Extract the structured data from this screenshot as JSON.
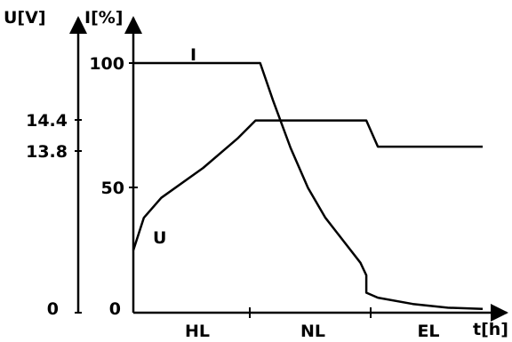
{
  "chart_data": {
    "type": "line",
    "left_axis_label": "U[V]",
    "right_axis_label": "I[%]",
    "x_axis_label": "t[h]",
    "left_ticks": [
      "14.4",
      "13.8",
      "0"
    ],
    "right_ticks": [
      "100",
      "50",
      "0"
    ],
    "phases": [
      "HL",
      "NL",
      "EL"
    ],
    "series": [
      {
        "name": "I",
        "axis": "right",
        "points": [
          [
            0,
            100
          ],
          [
            0.363,
            100
          ],
          [
            0.4,
            85
          ],
          [
            0.45,
            66
          ],
          [
            0.5,
            50
          ],
          [
            0.55,
            38
          ],
          [
            0.6,
            29
          ],
          [
            0.65,
            20
          ],
          [
            0.667,
            15
          ],
          [
            0.667,
            8
          ],
          [
            0.7,
            6
          ],
          [
            0.8,
            3.5
          ],
          [
            0.9,
            2
          ],
          [
            1.0,
            1.5
          ]
        ]
      },
      {
        "name": "U",
        "axis": "left",
        "points": [
          [
            0,
            25
          ],
          [
            0.03,
            38
          ],
          [
            0.08,
            46
          ],
          [
            0.2,
            58
          ],
          [
            0.3,
            70
          ],
          [
            0.35,
            77
          ],
          [
            0.667,
            77
          ],
          [
            0.7,
            66.5
          ],
          [
            1.0,
            66.5
          ]
        ]
      }
    ]
  }
}
